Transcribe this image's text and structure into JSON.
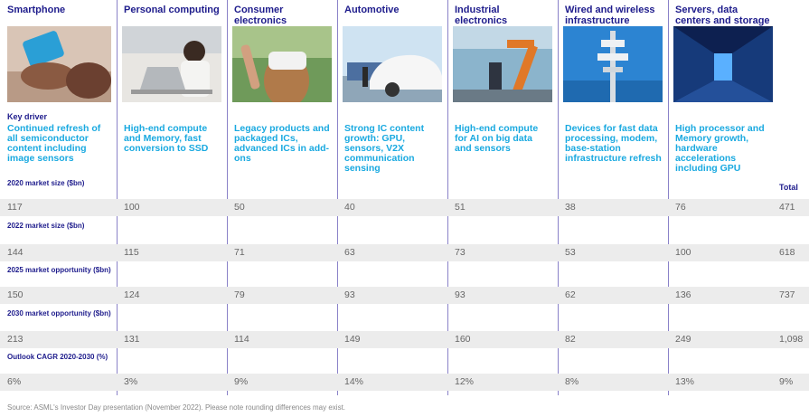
{
  "columns": [
    {
      "name": "Smartphone",
      "icon": "smartphone-photo",
      "driver": "Continued refresh of all semiconductor content including image sensors"
    },
    {
      "name": "Personal computing",
      "icon": "laptop-photo",
      "driver": "High-end compute and Memory, fast conversion to SSD"
    },
    {
      "name": "Consumer electronics",
      "icon": "vr-headset-photo",
      "driver": "Legacy products and packaged ICs, advanced ICs in add-ons"
    },
    {
      "name": "Automotive",
      "icon": "electric-car-photo",
      "driver": "Strong IC content growth: GPU, sensors, V2X communication sensing"
    },
    {
      "name": "Industrial electronics",
      "icon": "robot-arm-photo",
      "driver": "High-end compute for AI on big data and sensors"
    },
    {
      "name": "Wired and wireless infrastructure",
      "icon": "cell-tower-photo",
      "driver": "Devices for fast data processing, modem, base-station infrastructure refresh"
    },
    {
      "name": "Servers, data centers and storage",
      "icon": "server-room-photo",
      "driver": "High processor and Memory growth, hardware accelerations including GPU"
    }
  ],
  "key_driver_label": "Key driver",
  "total_label": "Total",
  "rows": [
    {
      "label": "2020 market size ($bn)",
      "values": [
        "117",
        "100",
        "50",
        "40",
        "51",
        "38",
        "76"
      ],
      "total": "471"
    },
    {
      "label": "2022 market size ($bn)",
      "values": [
        "144",
        "115",
        "71",
        "63",
        "73",
        "53",
        "100"
      ],
      "total": "618"
    },
    {
      "label": "2025 market opportunity ($bn)",
      "values": [
        "150",
        "124",
        "79",
        "93",
        "93",
        "62",
        "136"
      ],
      "total": "737"
    },
    {
      "label": "2030 market opportunity ($bn)",
      "values": [
        "213",
        "131",
        "114",
        "149",
        "160",
        "82",
        "249"
      ],
      "total": "1,098"
    },
    {
      "label": "Outlook CAGR 2020-2030 (%)",
      "values": [
        "6%",
        "3%",
        "9%",
        "14%",
        "12%",
        "8%",
        "13%"
      ],
      "total": "9%"
    }
  ],
  "source": "Source: ASML's Investor Day presentation (November 2022). Please note rounding differences may exist.",
  "colors": {
    "header": "#1e1c8c",
    "driver": "#19a9e0",
    "band": "#ececec",
    "rule": "#8a82c8"
  }
}
